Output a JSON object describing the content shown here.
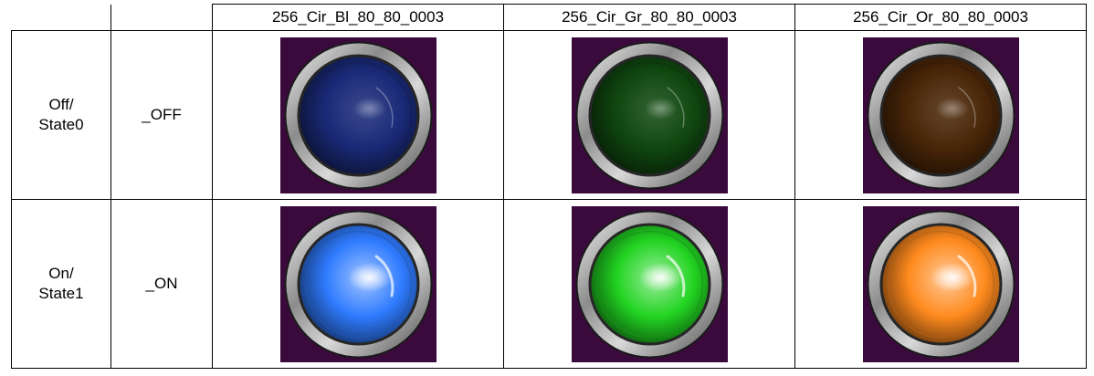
{
  "columns": [
    {
      "name": "256_Cir_Bl_80_80_0003",
      "off_color": "#1a2a78",
      "on_color": "#2f7bff"
    },
    {
      "name": "256_Cir_Gr_80_80_0003",
      "off_color": "#104810",
      "on_color": "#22d422"
    },
    {
      "name": "256_Cir_Or_80_80_0003",
      "off_color": "#4a2608",
      "on_color": "#ff8a1e"
    }
  ],
  "rows": [
    {
      "state": "Off/\nState0",
      "suffix": "_OFF",
      "lit": false
    },
    {
      "state": "On/\nState1",
      "suffix": "_ON",
      "lit": true
    }
  ],
  "tile_background": "#3a0a3c",
  "icon": "round-pilot-lamp-icon"
}
